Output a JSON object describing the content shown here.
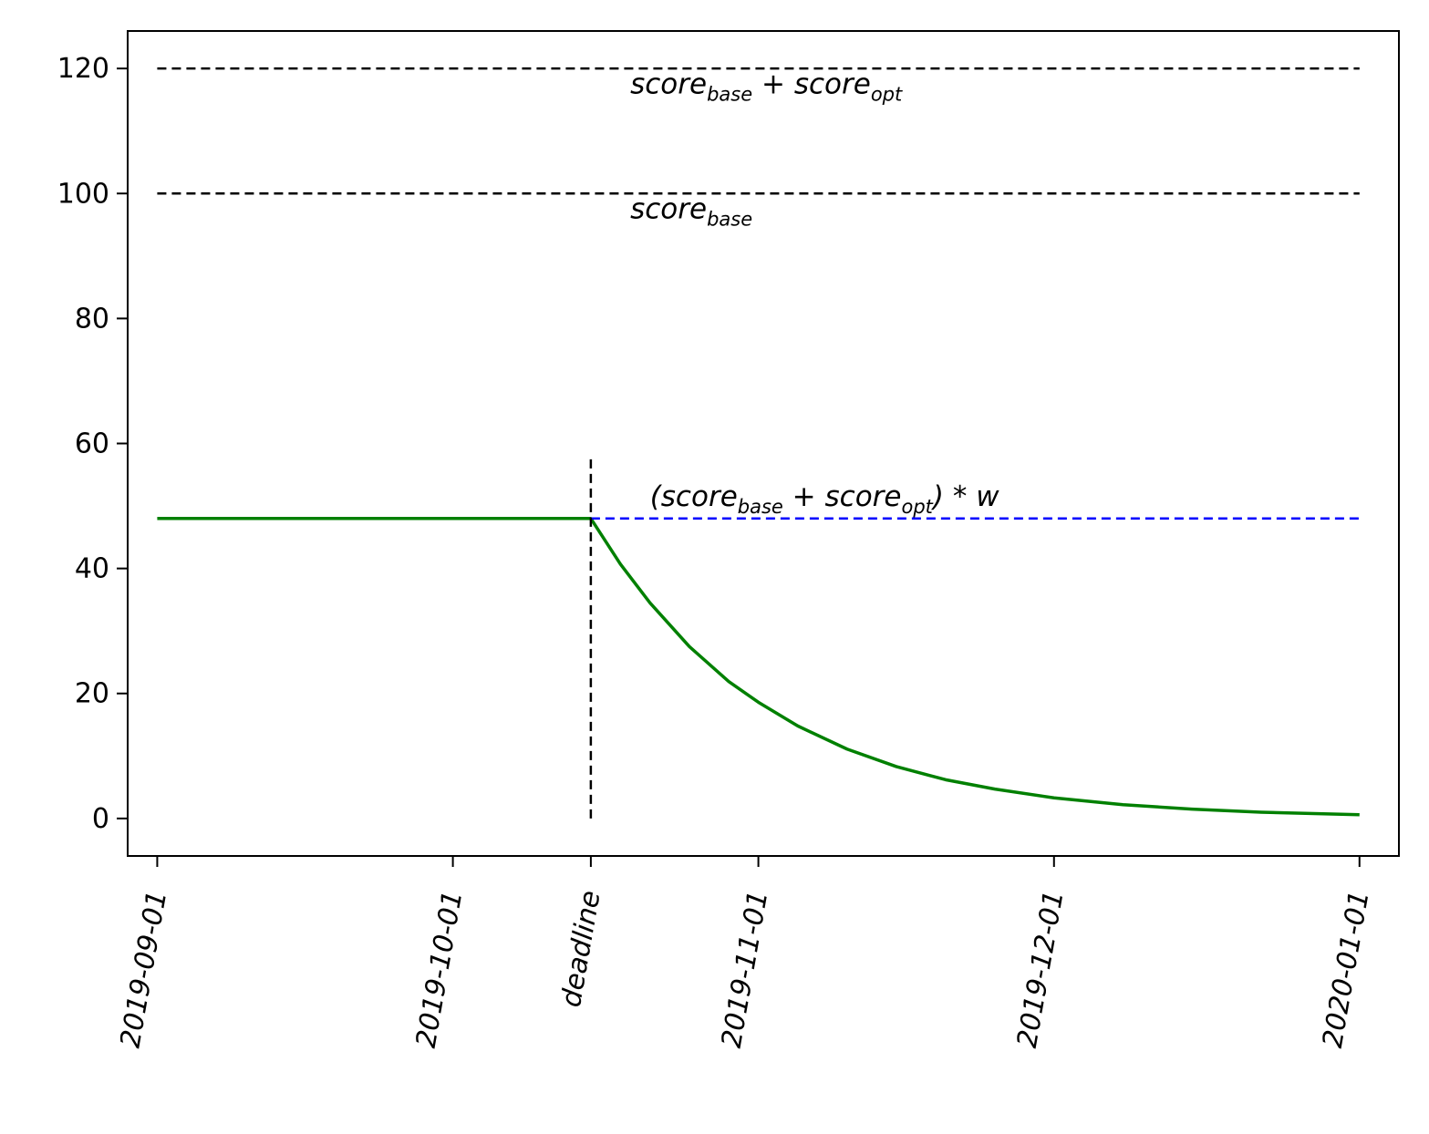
{
  "chart_data": {
    "type": "line",
    "title": "",
    "xlabel": "",
    "ylabel": "",
    "x_axis": {
      "type": "date",
      "range": [
        "2019-08-29",
        "2020-01-05"
      ],
      "ticks": [
        {
          "date": "2019-09-01",
          "label": "2019-09-01"
        },
        {
          "date": "2019-10-01",
          "label": "2019-10-01"
        },
        {
          "date": "2019-10-15",
          "label": "deadline"
        },
        {
          "date": "2019-11-01",
          "label": "2019-11-01"
        },
        {
          "date": "2019-12-01",
          "label": "2019-12-01"
        },
        {
          "date": "2020-01-01",
          "label": "2020-01-01"
        }
      ],
      "tick_label_rotation": "80 degrees, italic"
    },
    "y_axis": {
      "range": [
        -6,
        126
      ],
      "ticks": [
        0,
        20,
        40,
        60,
        80,
        100,
        120
      ]
    },
    "grid": false,
    "deadline": "2019-10-15",
    "series": [
      {
        "role": "submission score",
        "color": "#008000",
        "style": "solid",
        "points": [
          [
            "2019-09-01",
            48
          ],
          [
            "2019-10-15",
            48
          ],
          [
            "2019-10-18",
            40.7
          ],
          [
            "2019-10-21",
            34.5
          ],
          [
            "2019-10-25",
            27.5
          ],
          [
            "2019-10-29",
            21.9
          ],
          [
            "2019-11-01",
            18.6
          ],
          [
            "2019-11-05",
            14.8
          ],
          [
            "2019-11-10",
            11.1
          ],
          [
            "2019-11-15",
            8.3
          ],
          [
            "2019-11-20",
            6.2
          ],
          [
            "2019-11-25",
            4.7
          ],
          [
            "2019-12-01",
            3.3
          ],
          [
            "2019-12-08",
            2.2
          ],
          [
            "2019-12-15",
            1.5
          ],
          [
            "2019-12-22",
            1.0
          ],
          [
            "2020-01-01",
            0.6
          ]
        ]
      },
      {
        "role": "score base + score opt",
        "color": "#000000",
        "style": "dashed",
        "points": [
          [
            "2019-09-01",
            120
          ],
          [
            "2020-01-01",
            120
          ]
        ]
      },
      {
        "role": "score base",
        "color": "#000000",
        "style": "dashed",
        "points": [
          [
            "2019-09-01",
            100
          ],
          [
            "2020-01-01",
            100
          ]
        ]
      },
      {
        "role": "weighted score",
        "color": "#0000ff",
        "style": "dashed",
        "points": [
          [
            "2019-10-15",
            48
          ],
          [
            "2020-01-01",
            48
          ]
        ]
      },
      {
        "role": "deadline marker",
        "color": "#000000",
        "style": "dashed",
        "points": [
          [
            "2019-10-15",
            0
          ],
          [
            "2019-10-15",
            58
          ]
        ]
      }
    ],
    "annotations": [
      {
        "text": "score_{base} + score_{opt}",
        "x": "2019-10-19",
        "y": 116
      },
      {
        "text": "score_{base}",
        "x": "2019-10-19",
        "y": 96
      },
      {
        "text": "(score_{base} + score_{opt}) * w",
        "x": "2019-10-21",
        "y": 50
      }
    ]
  }
}
